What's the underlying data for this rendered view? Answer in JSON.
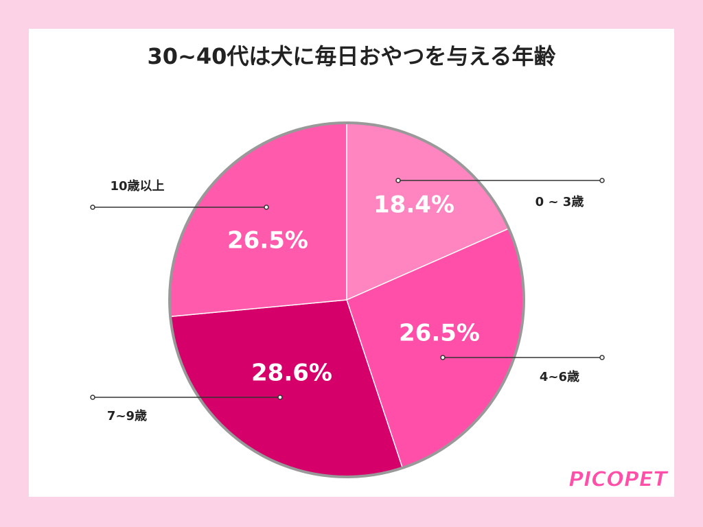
{
  "chart_data": {
    "type": "pie",
    "title": "30~40代は犬に毎日おやつを与える年齢",
    "categories": [
      "0 ~ 3歳",
      "4~6歳",
      "7~9歳",
      "10歳以上"
    ],
    "values": [
      18.4,
      26.5,
      28.6,
      26.5
    ],
    "value_labels": [
      "18.4%",
      "26.5%",
      "28.6%",
      "26.5%"
    ],
    "colors": [
      "#ff85c0",
      "#ff4fa8",
      "#d6006a",
      "#ff5aab"
    ]
  },
  "logo": "PICOPET"
}
